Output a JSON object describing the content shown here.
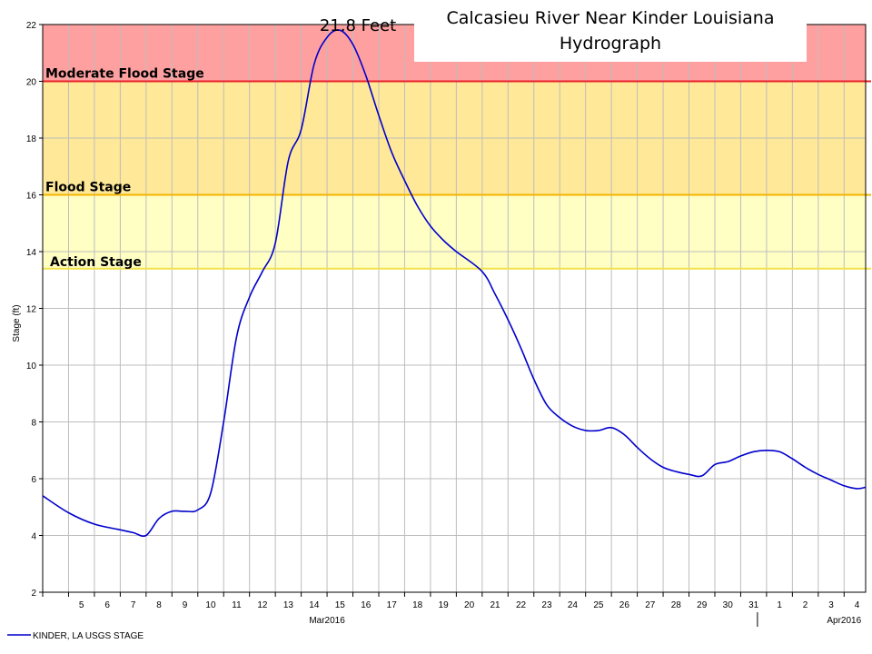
{
  "chart_data": {
    "type": "line",
    "title_lines": [
      "Calcasieu River Near Kinder Louisiana",
      "Hydrograph"
    ],
    "ylabel": "Stage (ft)",
    "ylim": [
      2,
      22
    ],
    "yticks": [
      2,
      4,
      6,
      8,
      10,
      12,
      14,
      16,
      18,
      20,
      22
    ],
    "xlim": [
      "2016-03-04",
      "2016-04-04 20:00"
    ],
    "x_day_labels": [
      "5",
      "6",
      "7",
      "8",
      "9",
      "10",
      "11",
      "12",
      "13",
      "14",
      "15",
      "16",
      "17",
      "18",
      "19",
      "20",
      "21",
      "22",
      "23",
      "24",
      "25",
      "26",
      "27",
      "28",
      "29",
      "30",
      "31",
      "1",
      "2",
      "3",
      "4"
    ],
    "month_labels": [
      {
        "text": "Mar2016",
        "date": "2016-03-15"
      },
      {
        "text": "Apr2016",
        "date": "2016-04-04"
      }
    ],
    "grid": true,
    "flood_categories": [
      {
        "name": "Action Stage",
        "label": "Action Stage",
        "lower": 13.4,
        "upper": 16,
        "fill": "#FFFFC4",
        "line": "#F2E24A"
      },
      {
        "name": "Flood Stage",
        "label": "Flood Stage",
        "lower": 16,
        "upper": 20,
        "fill": "#FFE898",
        "line": "#F4B400"
      },
      {
        "name": "Moderate Flood Stage",
        "label": "Moderate Flood Stage",
        "lower": 20,
        "upper": 22,
        "fill": "#FFA0A0",
        "line": "#E8202A"
      }
    ],
    "annotation": {
      "text": "21.8 Feet",
      "date": "2016-03-15 12:00",
      "value": 21.8
    },
    "series": [
      {
        "name": "KINDER, LA USGS STAGE",
        "color": "#0000CC",
        "x": [
          "2016-03-04 00:00",
          "2016-03-05 00:00",
          "2016-03-06 00:00",
          "2016-03-07 00:00",
          "2016-03-07 12:00",
          "2016-03-08 00:00",
          "2016-03-08 12:00",
          "2016-03-09 00:00",
          "2016-03-09 12:00",
          "2016-03-10 00:00",
          "2016-03-10 12:00",
          "2016-03-11 00:00",
          "2016-03-11 12:00",
          "2016-03-12 00:00",
          "2016-03-12 12:00",
          "2016-03-13 00:00",
          "2016-03-13 12:00",
          "2016-03-14 00:00",
          "2016-03-14 12:00",
          "2016-03-15 00:00",
          "2016-03-15 12:00",
          "2016-03-16 00:00",
          "2016-03-16 12:00",
          "2016-03-17 00:00",
          "2016-03-17 12:00",
          "2016-03-18 00:00",
          "2016-03-18 12:00",
          "2016-03-19 00:00",
          "2016-03-19 12:00",
          "2016-03-20 00:00",
          "2016-03-21 00:00",
          "2016-03-21 12:00",
          "2016-03-22 00:00",
          "2016-03-22 12:00",
          "2016-03-23 00:00",
          "2016-03-23 12:00",
          "2016-03-24 00:00",
          "2016-03-24 12:00",
          "2016-03-25 00:00",
          "2016-03-25 12:00",
          "2016-03-26 00:00",
          "2016-03-26 12:00",
          "2016-03-27 00:00",
          "2016-03-27 12:00",
          "2016-03-28 00:00",
          "2016-03-28 12:00",
          "2016-03-29 00:00",
          "2016-03-29 12:00",
          "2016-03-30 00:00",
          "2016-03-30 12:00",
          "2016-03-31 00:00",
          "2016-03-31 12:00",
          "2016-04-01 00:00",
          "2016-04-01 12:00",
          "2016-04-02 00:00",
          "2016-04-02 12:00",
          "2016-04-03 00:00",
          "2016-04-03 12:00",
          "2016-04-04 00:00",
          "2016-04-04 12:00",
          "2016-04-04 20:00"
        ],
        "y": [
          5.4,
          4.8,
          4.4,
          4.2,
          4.1,
          4.0,
          4.6,
          4.85,
          4.85,
          4.9,
          5.5,
          8.0,
          11.0,
          12.4,
          13.3,
          14.3,
          17.2,
          18.3,
          20.6,
          21.55,
          21.8,
          21.3,
          20.2,
          18.8,
          17.5,
          16.5,
          15.6,
          14.9,
          14.4,
          14.0,
          13.3,
          12.5,
          11.6,
          10.6,
          9.5,
          8.6,
          8.15,
          7.85,
          7.7,
          7.7,
          7.8,
          7.55,
          7.1,
          6.7,
          6.4,
          6.25,
          6.15,
          6.1,
          6.5,
          6.6,
          6.8,
          6.95,
          7.0,
          6.95,
          6.7,
          6.4,
          6.15,
          5.95,
          5.75,
          5.65,
          5.7
        ]
      }
    ]
  }
}
